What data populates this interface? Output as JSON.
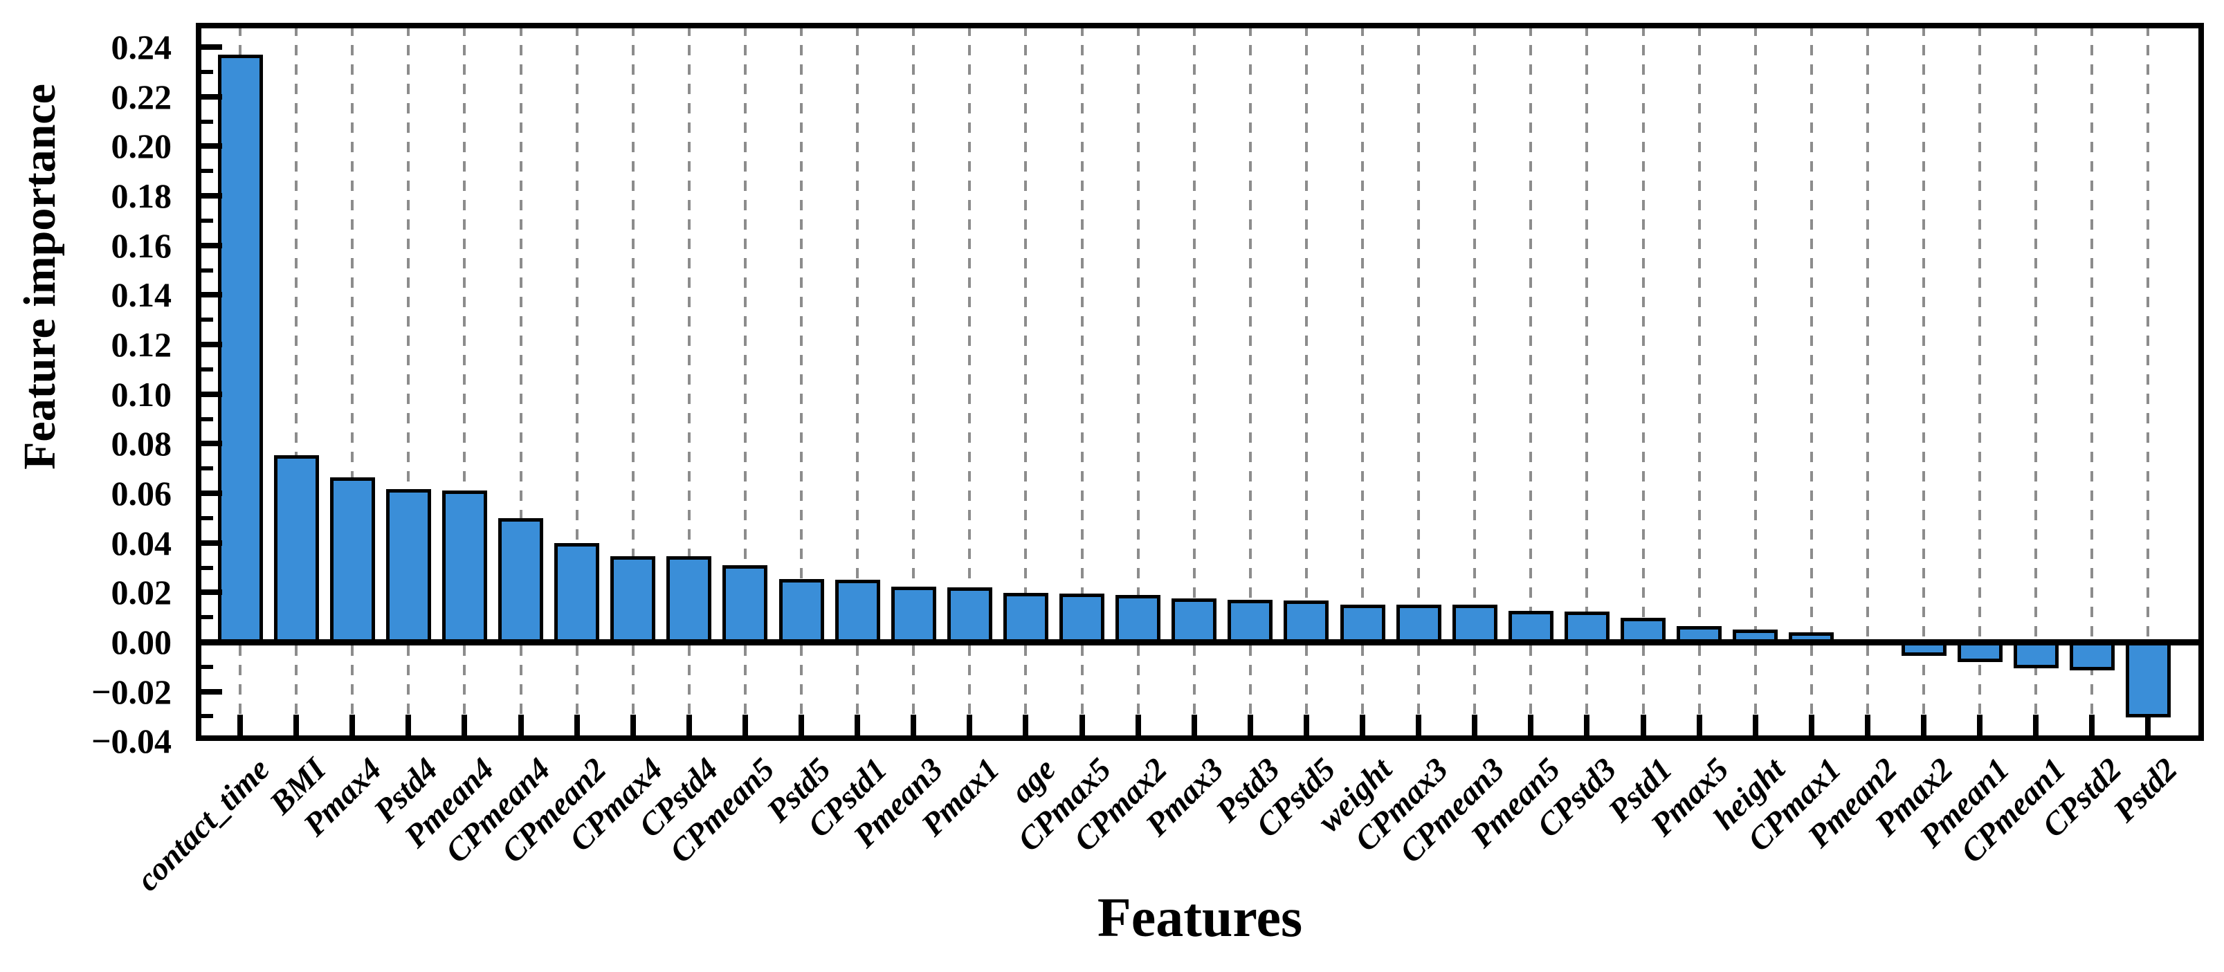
{
  "chart_data": {
    "type": "bar",
    "title": "",
    "xlabel": "Features",
    "ylabel": "Feature importance",
    "categories": [
      "contact_time",
      "BMI",
      "Pmax4",
      "Pstd4",
      "Pmean4",
      "CPmean4",
      "CPmean2",
      "CPmax4",
      "CPstd4",
      "CPmean5",
      "Pstd5",
      "CPstd1",
      "Pmean3",
      "Pmax1",
      "age",
      "CPmax5",
      "CPmax2",
      "Pmax3",
      "Pstd3",
      "CPstd5",
      "weight",
      "CPmax3",
      "CPmean3",
      "Pmean5",
      "CPstd3",
      "Pstd1",
      "Pmax5",
      "height",
      "CPmax1",
      "Pmean2",
      "Pmax2",
      "Pmean1",
      "CPmean1",
      "CPstd2",
      "Pstd2"
    ],
    "values": [
      0.2369,
      0.0754,
      0.0664,
      0.0617,
      0.061,
      0.05,
      0.04,
      0.0347,
      0.0346,
      0.031,
      0.0254,
      0.0251,
      0.0224,
      0.022,
      0.0198,
      0.0195,
      0.019,
      0.0176,
      0.0171,
      0.0168,
      0.0152,
      0.0151,
      0.015,
      0.0126,
      0.0123,
      0.0098,
      0.0064,
      0.005,
      0.0039,
      0.0002,
      -0.0045,
      -0.007,
      -0.0095,
      -0.0103,
      -0.0293
    ],
    "ylim": [
      -0.04,
      0.25
    ],
    "yticks": [
      -0.04,
      -0.02,
      0.0,
      0.02,
      0.04,
      0.06,
      0.08,
      0.1,
      0.12,
      0.14,
      0.16,
      0.18,
      0.2,
      0.22,
      0.24
    ],
    "ytick_labels": [
      "−0.04",
      "−0.02",
      "0.00",
      "0.02",
      "0.04",
      "0.06",
      "0.08",
      "0.10",
      "0.12",
      "0.14",
      "0.16",
      "0.18",
      "0.20",
      "0.22",
      "0.24"
    ],
    "minor_ytick_step": 0.01,
    "legend": "none",
    "grid": "vertical-dashed-at-each-category",
    "bar_color": "#3a8ed8",
    "bar_edge_color": "#000000",
    "grid_color": "#8c8c8c",
    "axis_color": "#000000"
  }
}
